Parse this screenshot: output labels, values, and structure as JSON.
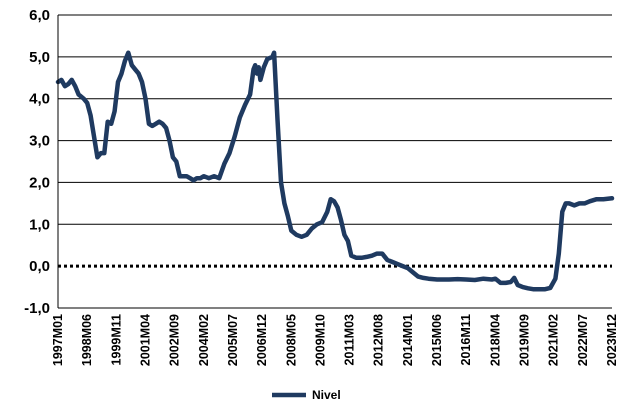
{
  "chart_data": {
    "type": "line",
    "title": "",
    "xlabel": "",
    "ylabel": "",
    "ylim": [
      -1.0,
      6.0
    ],
    "y_ticks": [
      "-1,0",
      "0,0",
      "1,0",
      "2,0",
      "3,0",
      "4,0",
      "5,0",
      "6,0"
    ],
    "x_range": [
      "1997M01",
      "2023M12"
    ],
    "x_ticks": [
      "1997M01",
      "1998M06",
      "1999M11",
      "2001M04",
      "2002M09",
      "2004M02",
      "2005M07",
      "2006M12",
      "2008M05",
      "2009M10",
      "2011M03",
      "2012M08",
      "2014M01",
      "2015M06",
      "2016M11",
      "2018M04",
      "2019M09",
      "2021M02",
      "2022M07",
      "2023M12"
    ],
    "grid": true,
    "legend_position": "bottom",
    "reference_line": {
      "y": 0.0,
      "style": "dotted"
    },
    "colors": {
      "series": "#1f3a60",
      "grid": "#000000",
      "reference": "#000000"
    },
    "series": [
      {
        "name": "Nivel",
        "points": [
          [
            "1997M01",
            4.4
          ],
          [
            "1997M03",
            4.45
          ],
          [
            "1997M05",
            4.3
          ],
          [
            "1997M07",
            4.35
          ],
          [
            "1997M09",
            4.45
          ],
          [
            "1997M11",
            4.3
          ],
          [
            "1998M01",
            4.1
          ],
          [
            "1998M04",
            4.0
          ],
          [
            "1998M06",
            3.9
          ],
          [
            "1998M08",
            3.6
          ],
          [
            "1998M10",
            3.1
          ],
          [
            "1998M12",
            2.6
          ],
          [
            "1999M02",
            2.7
          ],
          [
            "1999M04",
            2.7
          ],
          [
            "1999M06",
            3.45
          ],
          [
            "1999M08",
            3.4
          ],
          [
            "1999M10",
            3.7
          ],
          [
            "1999M12",
            4.4
          ],
          [
            "2000M02",
            4.6
          ],
          [
            "2000M04",
            4.9
          ],
          [
            "2000M06",
            5.1
          ],
          [
            "2000M08",
            4.8
          ],
          [
            "2000M10",
            4.7
          ],
          [
            "2000M12",
            4.6
          ],
          [
            "2001M02",
            4.4
          ],
          [
            "2001M04",
            4.0
          ],
          [
            "2001M06",
            3.4
          ],
          [
            "2001M08",
            3.35
          ],
          [
            "2001M10",
            3.4
          ],
          [
            "2001M12",
            3.45
          ],
          [
            "2002M02",
            3.4
          ],
          [
            "2002M04",
            3.3
          ],
          [
            "2002M06",
            3.0
          ],
          [
            "2002M08",
            2.6
          ],
          [
            "2002M10",
            2.5
          ],
          [
            "2002M12",
            2.15
          ],
          [
            "2003M02",
            2.15
          ],
          [
            "2003M04",
            2.15
          ],
          [
            "2003M06",
            2.1
          ],
          [
            "2003M08",
            2.05
          ],
          [
            "2003M10",
            2.1
          ],
          [
            "2003M12",
            2.1
          ],
          [
            "2004M02",
            2.15
          ],
          [
            "2004M05",
            2.1
          ],
          [
            "2004M08",
            2.15
          ],
          [
            "2004M11",
            2.1
          ],
          [
            "2005M02",
            2.45
          ],
          [
            "2005M05",
            2.7
          ],
          [
            "2005M08",
            3.1
          ],
          [
            "2005M11",
            3.55
          ],
          [
            "2006M02",
            3.85
          ],
          [
            "2006M05",
            4.1
          ],
          [
            "2006M07",
            4.7
          ],
          [
            "2006M08",
            4.8
          ],
          [
            "2006M09",
            4.6
          ],
          [
            "2006M10",
            4.75
          ],
          [
            "2006M11",
            4.45
          ],
          [
            "2007M01",
            4.75
          ],
          [
            "2007M03",
            4.95
          ],
          [
            "2007M06",
            5.0
          ],
          [
            "2007M07",
            5.1
          ],
          [
            "2007M09",
            3.5
          ],
          [
            "2007M11",
            2.0
          ],
          [
            "2008M01",
            1.5
          ],
          [
            "2008M03",
            1.2
          ],
          [
            "2008M05",
            0.85
          ],
          [
            "2008M08",
            0.75
          ],
          [
            "2008M11",
            0.7
          ],
          [
            "2009M02",
            0.75
          ],
          [
            "2009M05",
            0.9
          ],
          [
            "2009M08",
            1.0
          ],
          [
            "2009M11",
            1.05
          ],
          [
            "2010M02",
            1.3
          ],
          [
            "2010M04",
            1.6
          ],
          [
            "2010M06",
            1.55
          ],
          [
            "2010M08",
            1.4
          ],
          [
            "2010M10",
            1.1
          ],
          [
            "2010M12",
            0.75
          ],
          [
            "2011M02",
            0.6
          ],
          [
            "2011M04",
            0.25
          ],
          [
            "2011M07",
            0.2
          ],
          [
            "2011M10",
            0.2
          ],
          [
            "2012M01",
            0.22
          ],
          [
            "2012M04",
            0.25
          ],
          [
            "2012M07",
            0.3
          ],
          [
            "2012M10",
            0.3
          ],
          [
            "2013M01",
            0.15
          ],
          [
            "2013M04",
            0.1
          ],
          [
            "2013M07",
            0.05
          ],
          [
            "2013M10",
            0.0
          ],
          [
            "2014M01",
            -0.05
          ],
          [
            "2014M04",
            -0.15
          ],
          [
            "2014M07",
            -0.25
          ],
          [
            "2014M10",
            -0.28
          ],
          [
            "2015M01",
            -0.3
          ],
          [
            "2015M06",
            -0.32
          ],
          [
            "2016M01",
            -0.32
          ],
          [
            "2016M06",
            -0.31
          ],
          [
            "2016M11",
            -0.32
          ],
          [
            "2017M04",
            -0.33
          ],
          [
            "2017M09",
            -0.3
          ],
          [
            "2018M02",
            -0.32
          ],
          [
            "2018M04",
            -0.3
          ],
          [
            "2018M07",
            -0.4
          ],
          [
            "2018M10",
            -0.4
          ],
          [
            "2019M01",
            -0.38
          ],
          [
            "2019M03",
            -0.28
          ],
          [
            "2019M05",
            -0.45
          ],
          [
            "2019M08",
            -0.5
          ],
          [
            "2019M11",
            -0.53
          ],
          [
            "2020M02",
            -0.55
          ],
          [
            "2020M06",
            -0.55
          ],
          [
            "2020M09",
            -0.55
          ],
          [
            "2020M12",
            -0.52
          ],
          [
            "2021M03",
            -0.3
          ],
          [
            "2021M05",
            0.3
          ],
          [
            "2021M07",
            1.3
          ],
          [
            "2021M09",
            1.5
          ],
          [
            "2021M11",
            1.5
          ],
          [
            "2022M02",
            1.45
          ],
          [
            "2022M05",
            1.5
          ],
          [
            "2022M08",
            1.5
          ],
          [
            "2022M11",
            1.55
          ],
          [
            "2023M03",
            1.6
          ],
          [
            "2023M07",
            1.6
          ],
          [
            "2023M12",
            1.62
          ]
        ]
      }
    ]
  }
}
